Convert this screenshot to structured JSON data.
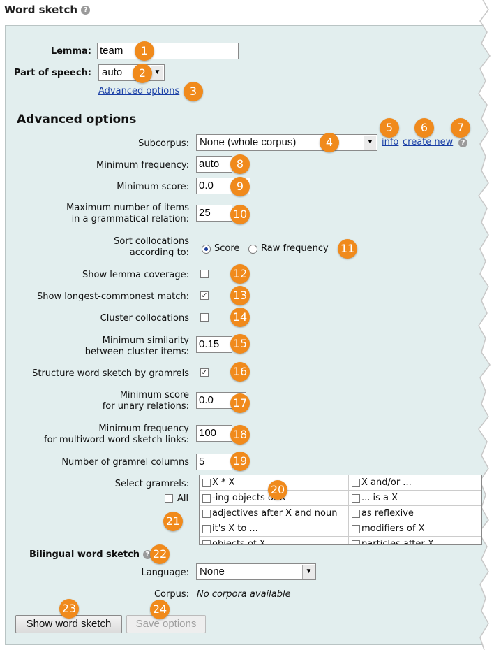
{
  "header": {
    "title": "Word sketch",
    "help": "?"
  },
  "basic": {
    "lemma_label": "Lemma:",
    "lemma_value": "team",
    "pos_label": "Part of speech:",
    "pos_value": "auto",
    "advanced_link": "Advanced options"
  },
  "advanced": {
    "heading": "Advanced options",
    "subcorpus_label": "Subcorpus:",
    "subcorpus_value": "None (whole corpus)",
    "info_link": "info",
    "create_new_link": "create new",
    "min_freq_label": "Minimum frequency:",
    "min_freq_value": "auto",
    "min_score_label": "Minimum score:",
    "min_score_value": "0.0",
    "max_items_label_1": "Maximum number of items",
    "max_items_label_2": "in a grammatical relation:",
    "max_items_value": "25",
    "sort_label_1": "Sort collocations",
    "sort_label_2": "according to:",
    "sort_option_score": "Score",
    "sort_option_raw": "Raw frequency",
    "lemma_coverage_label": "Show lemma coverage:",
    "longest_match_label": "Show longest-commonest match:",
    "cluster_label": "Cluster collocations",
    "min_sim_label_1": "Minimum similarity",
    "min_sim_label_2": "between cluster items:",
    "min_sim_value": "0.15",
    "structure_label": "Structure word sketch by gramrels",
    "unary_label_1": "Minimum score",
    "unary_label_2": "for unary relations:",
    "unary_value": "0.0",
    "multiword_label_1": "Minimum frequency",
    "multiword_label_2": "for multiword word sketch links:",
    "multiword_value": "100",
    "columns_label": "Number of gramrel columns",
    "columns_value": "5",
    "gramrels_label": "Select gramrels:",
    "all_label": "All",
    "gramrels": [
      [
        "X * X",
        "X and/or ..."
      ],
      [
        "-ing objects of X",
        "... is a X"
      ],
      [
        "adjectives after X and noun",
        "as reflexive"
      ],
      [
        "it's X to ...",
        "modifiers of X"
      ],
      [
        "objects of X",
        "particles after X"
      ]
    ]
  },
  "bilingual": {
    "heading": "Bilingual word sketch",
    "language_label": "Language:",
    "language_value": "None",
    "corpus_label": "Corpus:",
    "corpus_value": "No corpora available"
  },
  "buttons": {
    "show": "Show word sketch",
    "save": "Save options"
  },
  "badges": [
    "1",
    "2",
    "3",
    "4",
    "5",
    "6",
    "7",
    "8",
    "9",
    "10",
    "11",
    "12",
    "13",
    "14",
    "15",
    "16",
    "17",
    "18",
    "19",
    "20",
    "21",
    "22",
    "23",
    "24"
  ],
  "colors": {
    "panel": "#e2eeee",
    "badge": "#f08a1c",
    "link": "#1a3fa6"
  }
}
